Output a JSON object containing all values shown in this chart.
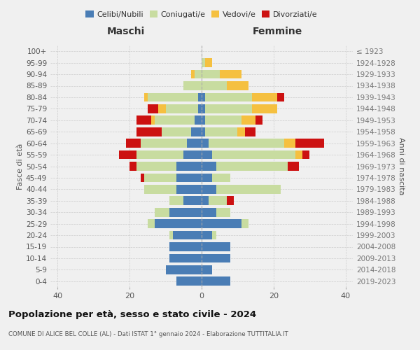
{
  "age_groups": [
    "0-4",
    "5-9",
    "10-14",
    "15-19",
    "20-24",
    "25-29",
    "30-34",
    "35-39",
    "40-44",
    "45-49",
    "50-54",
    "55-59",
    "60-64",
    "65-69",
    "70-74",
    "75-79",
    "80-84",
    "85-89",
    "90-94",
    "95-99",
    "100+"
  ],
  "birth_years": [
    "2019-2023",
    "2014-2018",
    "2009-2013",
    "2004-2008",
    "1999-2003",
    "1994-1998",
    "1989-1993",
    "1984-1988",
    "1979-1983",
    "1974-1978",
    "1969-1973",
    "1964-1968",
    "1959-1963",
    "1954-1958",
    "1949-1953",
    "1944-1948",
    "1939-1943",
    "1934-1938",
    "1929-1933",
    "1924-1928",
    "≤ 1923"
  ],
  "colors": {
    "celibi": "#4a7db5",
    "coniugati": "#c8dca0",
    "vedovi": "#f5c040",
    "divorziati": "#cc1111"
  },
  "males": {
    "celibi": [
      7,
      10,
      9,
      9,
      8,
      13,
      9,
      5,
      7,
      7,
      7,
      5,
      4,
      3,
      2,
      1,
      1,
      0,
      0,
      0,
      0
    ],
    "coniugati": [
      0,
      0,
      0,
      0,
      1,
      2,
      4,
      4,
      9,
      9,
      11,
      13,
      13,
      8,
      11,
      9,
      14,
      5,
      2,
      0,
      0
    ],
    "vedovi": [
      0,
      0,
      0,
      0,
      0,
      0,
      0,
      0,
      0,
      0,
      0,
      0,
      0,
      0,
      1,
      2,
      1,
      0,
      1,
      0,
      0
    ],
    "divorziati": [
      0,
      0,
      0,
      0,
      0,
      0,
      0,
      0,
      0,
      1,
      2,
      5,
      4,
      7,
      4,
      3,
      0,
      0,
      0,
      0,
      0
    ]
  },
  "females": {
    "celibi": [
      8,
      3,
      8,
      8,
      3,
      11,
      4,
      2,
      4,
      3,
      4,
      3,
      2,
      1,
      1,
      1,
      1,
      0,
      0,
      0,
      0
    ],
    "coniugati": [
      0,
      0,
      0,
      0,
      1,
      2,
      4,
      5,
      18,
      5,
      20,
      23,
      21,
      9,
      10,
      13,
      13,
      7,
      5,
      1,
      0
    ],
    "vedovi": [
      0,
      0,
      0,
      0,
      0,
      0,
      0,
      0,
      0,
      0,
      0,
      2,
      3,
      2,
      4,
      7,
      7,
      6,
      6,
      2,
      0
    ],
    "divorziati": [
      0,
      0,
      0,
      0,
      0,
      0,
      0,
      2,
      0,
      0,
      3,
      2,
      8,
      3,
      2,
      0,
      2,
      0,
      0,
      0,
      0
    ]
  },
  "title": "Popolazione per età, sesso e stato civile - 2024",
  "subtitle": "COMUNE DI ALICE BEL COLLE (AL) - Dati ISTAT 1° gennaio 2024 - Elaborazione TUTTITALIA.IT",
  "xlabel_left": "Maschi",
  "xlabel_right": "Femmine",
  "ylabel_left": "Fasce di età",
  "ylabel_right": "Anni di nascita",
  "xlim": 42,
  "legend_labels": [
    "Celibi/Nubili",
    "Coniugati/e",
    "Vedovi/e",
    "Divorziati/e"
  ],
  "background_color": "#f0f0f0"
}
